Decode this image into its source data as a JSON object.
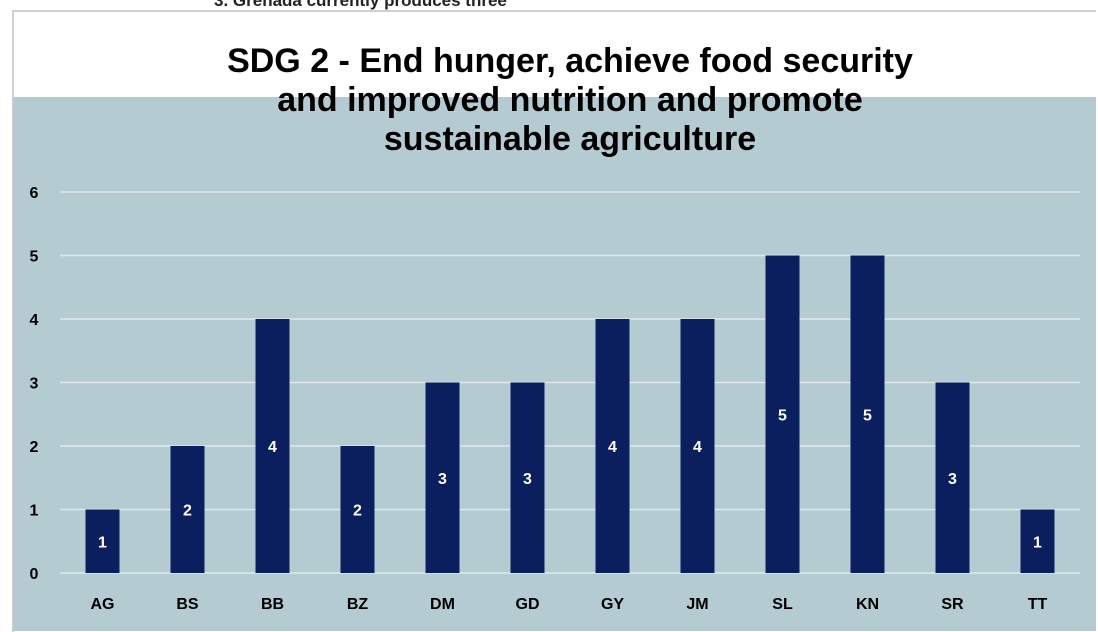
{
  "page": {
    "top_caption": "3.   Grenada currently produces three"
  },
  "chart_data": {
    "type": "bar",
    "title_lines": [
      "SDG 2 - End hunger, achieve food  security",
      "and improved nutrition and promote",
      "sustainable agriculture"
    ],
    "categories": [
      "AG",
      "BS",
      "BB",
      "BZ",
      "DM",
      "GD",
      "GY",
      "JM",
      "SL",
      "KN",
      "SR",
      "TT"
    ],
    "values": [
      1,
      2,
      4,
      2,
      3,
      3,
      4,
      4,
      5,
      5,
      3,
      1
    ],
    "ylim": [
      0,
      6
    ],
    "yticks": [
      0,
      1,
      2,
      3,
      4,
      5,
      6
    ],
    "grid": true,
    "legend": "none",
    "colors": {
      "bar": "#0b1f5e",
      "plot_background": "#b4cbd2",
      "gridline": "#dfe9ec",
      "data_label": "#ffffff",
      "axis_text": "#000000"
    }
  }
}
